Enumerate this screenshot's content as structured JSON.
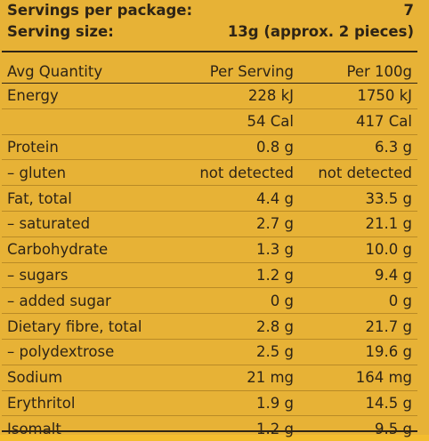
{
  "servings": {
    "label": "Servings per package:",
    "value": "7"
  },
  "serving_size": {
    "label": "Serving size:",
    "value": "13g (approx. 2 pieces)"
  },
  "columns": {
    "name": "Avg Quantity",
    "per_serving": "Per Serving",
    "per_100g": "Per 100g"
  },
  "rows": [
    {
      "name": "Energy",
      "per_serving": "228 kJ",
      "per_100g": "1750 kJ"
    },
    {
      "name": "",
      "per_serving": "54 Cal",
      "per_100g": "417 Cal"
    },
    {
      "name": "Protein",
      "per_serving": "0.8 g",
      "per_100g": "6.3 g"
    },
    {
      "name": "– gluten",
      "per_serving": "not detected",
      "per_100g": "not detected"
    },
    {
      "name": "Fat, total",
      "per_serving": "4.4 g",
      "per_100g": "33.5 g"
    },
    {
      "name": "– saturated",
      "per_serving": "2.7 g",
      "per_100g": "21.1 g"
    },
    {
      "name": "Carbohydrate",
      "per_serving": "1.3 g",
      "per_100g": "10.0 g"
    },
    {
      "name": "– sugars",
      "per_serving": "1.2 g",
      "per_100g": "9.4 g"
    },
    {
      "name": "– added sugar",
      "per_serving": "0 g",
      "per_100g": "0 g"
    },
    {
      "name": "Dietary fibre, total",
      "per_serving": "2.8 g",
      "per_100g": "21.7 g"
    },
    {
      "name": "– polydextrose",
      "per_serving": "2.5 g",
      "per_100g": "19.6 g"
    },
    {
      "name": "Sodium",
      "per_serving": "21 mg",
      "per_100g": "164 mg"
    },
    {
      "name": "Erythritol",
      "per_serving": "1.9 g",
      "per_100g": "14.5 g"
    },
    {
      "name": "Isomalt",
      "per_serving": "1.2 g",
      "per_100g": "9.5 g"
    }
  ]
}
